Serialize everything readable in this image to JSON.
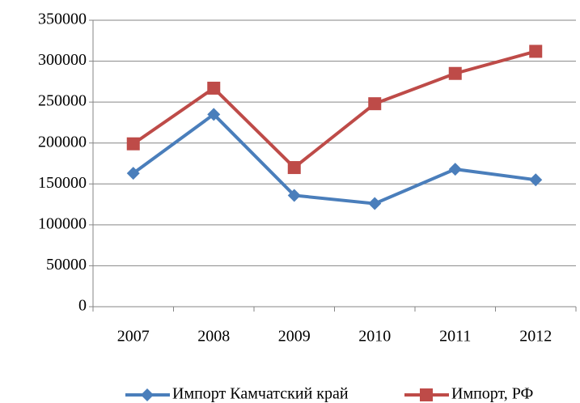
{
  "chart_data": {
    "type": "line",
    "categories": [
      "2007",
      "2008",
      "2009",
      "2010",
      "2011",
      "2012"
    ],
    "series": [
      {
        "name": "Импорт Камчатский край",
        "color": "#4a7ebb",
        "marker": "diamond",
        "values": [
          163000,
          235000,
          136000,
          126000,
          168000,
          155000
        ]
      },
      {
        "name": "Импорт, РФ",
        "color": "#be4b48",
        "marker": "square",
        "values": [
          199000,
          267000,
          170000,
          248000,
          285000,
          312000
        ]
      }
    ],
    "ylim": [
      0,
      350000
    ],
    "yticks": [
      0,
      50000,
      100000,
      150000,
      200000,
      250000,
      300000,
      350000
    ],
    "grid": true,
    "legend": "bottom"
  }
}
